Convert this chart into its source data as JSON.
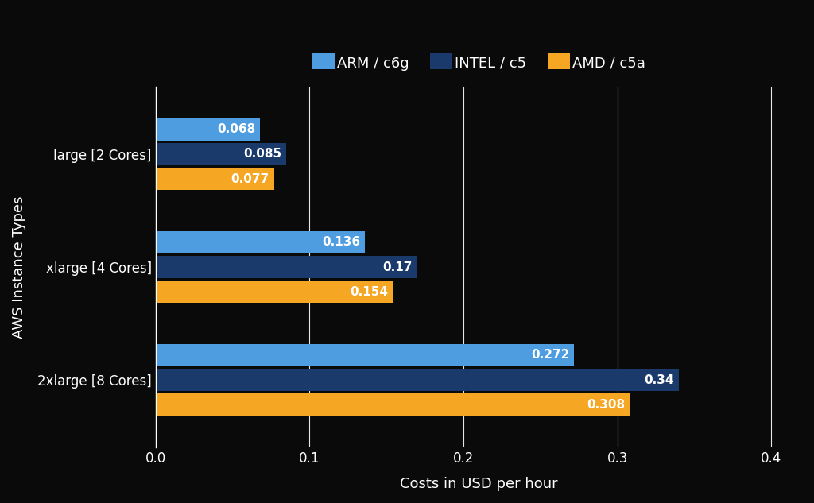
{
  "categories": [
    "2xlarge [8 Cores]",
    "xlarge [4 Cores]",
    "large [2 Cores]"
  ],
  "series": [
    {
      "label": "ARM / c6g",
      "color": "#4d9de0",
      "values": [
        0.272,
        0.136,
        0.068
      ]
    },
    {
      "label": "INTEL / c5",
      "color": "#1a3a6b",
      "values": [
        0.34,
        0.17,
        0.085
      ]
    },
    {
      "label": "AMD / c5a",
      "color": "#f5a623",
      "values": [
        0.308,
        0.154,
        0.077
      ]
    }
  ],
  "xlabel": "Costs in USD per hour",
  "ylabel": "AWS Instance Types",
  "xlim": [
    0,
    0.42
  ],
  "xticks": [
    0.0,
    0.1,
    0.2,
    0.3,
    0.4
  ],
  "background_color": "#0a0a0a",
  "text_color": "#ffffff",
  "grid_color": "#ffffff",
  "bar_height": 0.2,
  "bar_gap": 0.02,
  "legend_fontsize": 13,
  "axis_label_fontsize": 13,
  "tick_fontsize": 12,
  "value_fontsize": 11
}
